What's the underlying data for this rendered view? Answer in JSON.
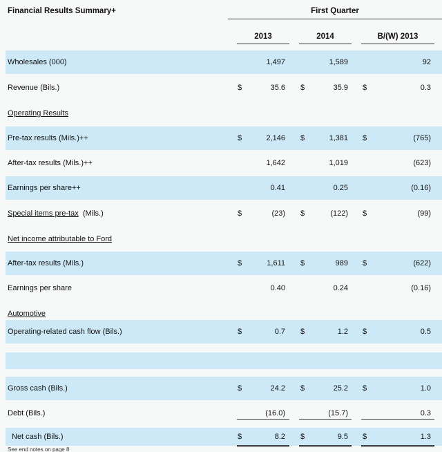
{
  "header": {
    "title": "Financial Results Summary+",
    "period": "First Quarter",
    "columns": [
      "2013",
      "2014",
      "B/(W) 2013"
    ]
  },
  "rows": {
    "wholesales": {
      "label": "Wholesales (000)",
      "v1": "1,497",
      "v2": "1,589",
      "v3": "92"
    },
    "revenue": {
      "label": "Revenue (Bils.)",
      "cur": "$",
      "v1": "35.6",
      "v2": "35.9",
      "v3": "0.3"
    },
    "operating_results": {
      "label": "Operating Results"
    },
    "pretax": {
      "label": "Pre-tax results (Mils.)++",
      "cur": "$",
      "v1": "2,146",
      "v2": "1,381",
      "v3": "(765)"
    },
    "aftertax": {
      "label": "After-tax results (Mils.)++",
      "v1": "1,642",
      "v2": "1,019",
      "v3": "(623)"
    },
    "eps": {
      "label": "Earnings per share++",
      "v1": "0.41",
      "v2": "0.25",
      "v3": "(0.16)"
    },
    "special": {
      "label_link": "Special items pre-tax",
      "label_rest": "(Mils.)",
      "cur": "$",
      "v1": "(23)",
      "v2": "(122)",
      "v3": "(99)"
    },
    "net_income": {
      "label": "Net income attributable to Ford"
    },
    "ni_aftertax": {
      "label": "After-tax results (Mils.)",
      "cur": "$",
      "v1": "1,611",
      "v2": "989",
      "v3": "(622)"
    },
    "ni_eps": {
      "label": "Earnings per share",
      "v1": "0.40",
      "v2": "0.24",
      "v3": "(0.16)"
    },
    "automotive": {
      "label": "Automotive"
    },
    "opcash": {
      "label": "Operating-related cash flow (Bils.)",
      "cur": "$",
      "v1": "0.7",
      "v2": "1.2",
      "v3": "0.5"
    },
    "gross_cash": {
      "label": "Gross cash (Bils.)",
      "cur": "$",
      "v1": "24.2",
      "v2": "25.2",
      "v3": "1.0"
    },
    "debt": {
      "label": "Debt (Bils.)",
      "v1": "(16.0)",
      "v2": "(15.7)",
      "v3": "0.3"
    },
    "net_cash": {
      "label": "Net cash (Bils.)",
      "cur": "$",
      "v1": "8.2",
      "v2": "9.5",
      "v3": "1.3"
    }
  },
  "footnote": "See end notes on page 8"
}
